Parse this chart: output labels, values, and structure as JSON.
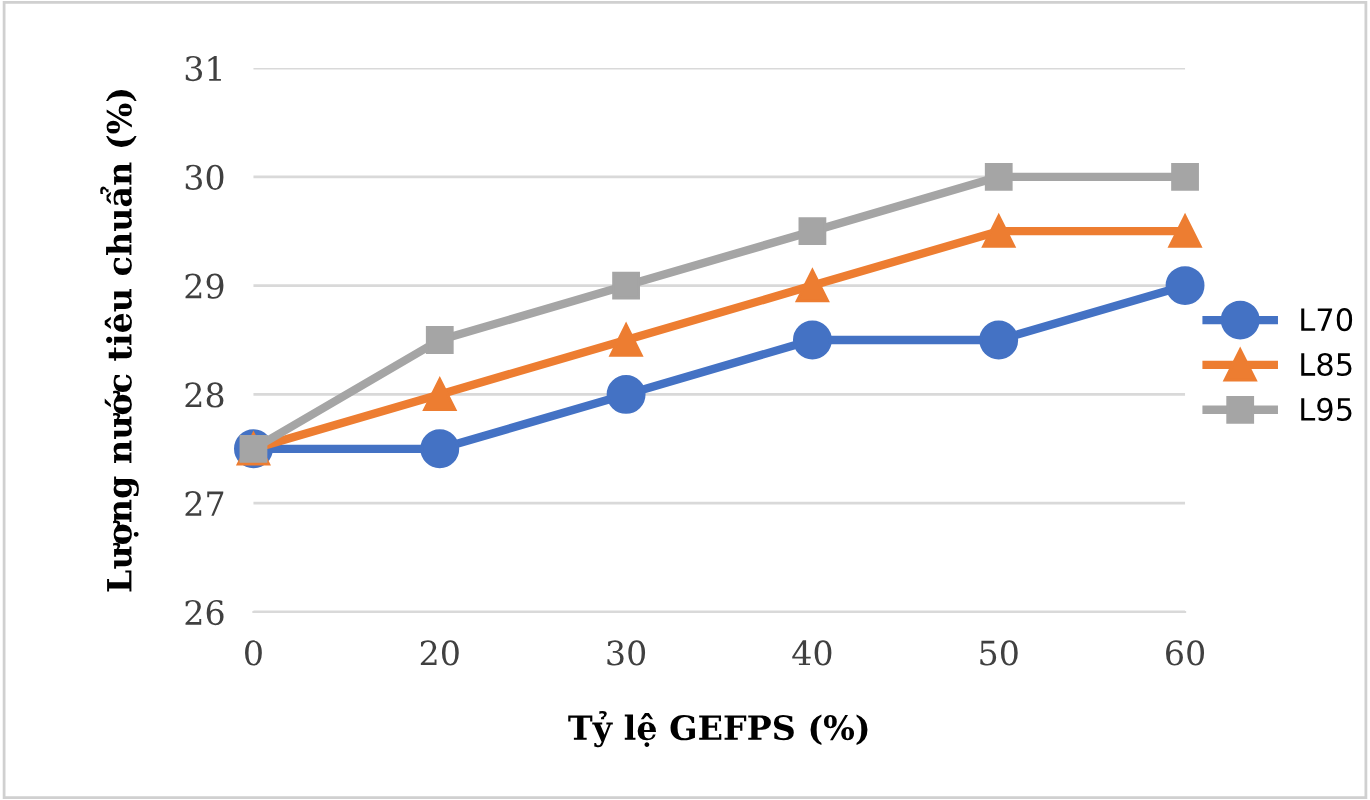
{
  "chart_data": {
    "type": "line",
    "xlabel": "Tỷ lệ GEFPS (%)",
    "ylabel": "Lượng nước tiêu chuẩn (%)",
    "categories": [
      "0",
      "20",
      "30",
      "40",
      "50",
      "60"
    ],
    "series": [
      {
        "name": "L70",
        "color": "#4472c4",
        "marker": "circle",
        "values": [
          27.5,
          27.5,
          28,
          28.5,
          28.5,
          29
        ]
      },
      {
        "name": "L85",
        "color": "#ed7d31",
        "marker": "triangle",
        "values": [
          27.5,
          28,
          28.5,
          29,
          29.5,
          29.5
        ]
      },
      {
        "name": "L95",
        "color": "#a5a5a5",
        "marker": "square",
        "values": [
          27.5,
          28.5,
          29,
          29.5,
          30,
          30
        ]
      }
    ],
    "ylim": [
      26,
      31
    ],
    "yticks": [
      26,
      27,
      28,
      29,
      30,
      31
    ],
    "grid": "y",
    "legend": "right",
    "line_style": "solid"
  }
}
